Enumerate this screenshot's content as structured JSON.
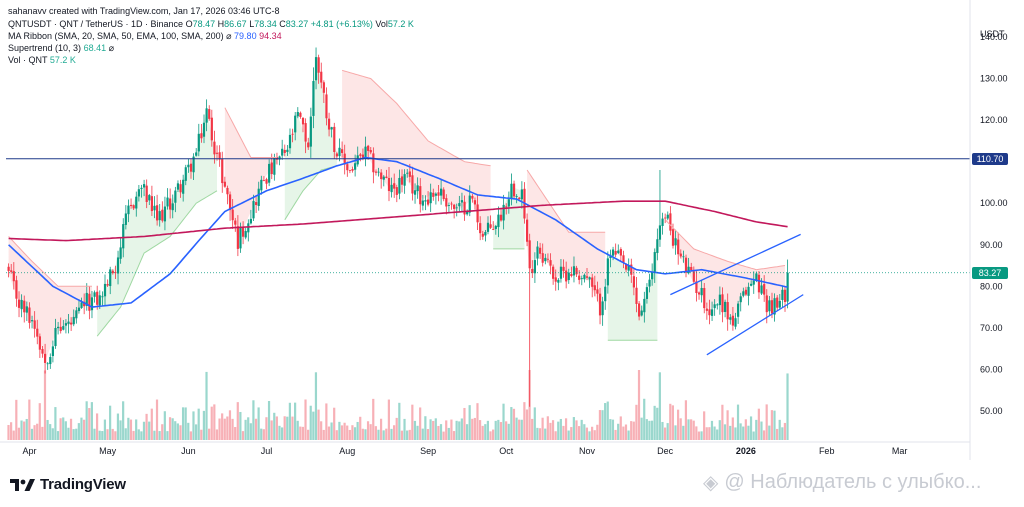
{
  "credit": "sahanavv created with TradingView.com, Jan 17, 2026 03:46 UTC-8",
  "legend": {
    "symbol": "QNTUSDT · QNT / TetherUS · 1D · Binance",
    "o_label": "O",
    "o_value": "78.47",
    "h_label": "H",
    "h_value": "86.67",
    "l_label": "L",
    "l_value": "78.34",
    "c_label": "C",
    "c_value": "83.27",
    "change": "+4.81 (+6.13%)",
    "vol_label": "Vol",
    "vol_value": "57.2 K",
    "ma_ribbon": "MA Ribbon (SMA, 20, SMA, 50, EMA, 100, SMA, 200)",
    "ma_symbol": "⌀",
    "ma_value_1": "79.80",
    "ma_value_2": "94.34",
    "supertrend": "Supertrend (10, 3)",
    "supertrend_symbol": "⌀",
    "supertrend_value": "68.41",
    "supertrend_suffix": "⌀",
    "vol_indicator": "Vol · QNT",
    "vol_indicator_value": "57.2 K"
  },
  "currency": "USDT",
  "price_labels": {
    "horizontal_line": "110.70",
    "last_price": "83.27"
  },
  "logo_text": "TradingView",
  "watermark": "@ Наблюдатель с улыбко...",
  "colors": {
    "up": "#089981",
    "down": "#f23645",
    "sma50": "#2962ff",
    "sma200": "#c2185b",
    "hline": "#1e3a8a",
    "channel": "#2962ff",
    "supertrend_down": "#f7a8a8",
    "supertrend_up": "#9fd8a2"
  },
  "chart_data": {
    "type": "candlestick",
    "title": "",
    "xlabel": "",
    "ylabel": "",
    "ylim": [
      43,
      147
    ],
    "y_ticks": [
      50,
      60,
      70,
      80,
      90,
      100,
      110,
      120,
      130,
      140
    ],
    "x_ticks": [
      "Apr",
      "May",
      "Jun",
      "Jul",
      "Aug",
      "Sep",
      "Oct",
      "Nov",
      "Dec",
      "2026",
      "Feb",
      "Mar"
    ],
    "x_tick_dates": [
      "2025-04-01",
      "2025-05-01",
      "2025-06-01",
      "2025-07-01",
      "2025-08-01",
      "2025-09-01",
      "2025-10-01",
      "2025-11-01",
      "2025-12-01",
      "2026-01-01",
      "2026-02-01",
      "2026-03-01"
    ],
    "date_range": [
      "2025-03-23",
      "2026-03-28"
    ],
    "first_candle_date": "2025-03-24",
    "last_candle_date": "2026-01-17",
    "grid": false,
    "horizontal_line": 110.7,
    "last_close": 83.27,
    "close_anchors": [
      [
        "2025-03-24",
        83
      ],
      [
        "2025-03-28",
        76
      ],
      [
        "2025-04-03",
        71
      ],
      [
        "2025-04-07",
        62
      ],
      [
        "2025-04-12",
        70
      ],
      [
        "2025-04-18",
        71
      ],
      [
        "2025-04-22",
        76
      ],
      [
        "2025-04-28",
        77
      ],
      [
        "2025-05-04",
        85
      ],
      [
        "2025-05-09",
        98
      ],
      [
        "2025-05-14",
        104
      ],
      [
        "2025-05-20",
        96
      ],
      [
        "2025-05-26",
        101
      ],
      [
        "2025-06-01",
        108
      ],
      [
        "2025-06-04",
        112
      ],
      [
        "2025-06-08",
        122
      ],
      [
        "2025-06-11",
        114
      ],
      [
        "2025-06-15",
        104
      ],
      [
        "2025-06-20",
        91
      ],
      [
        "2025-06-25",
        98
      ],
      [
        "2025-06-30",
        106
      ],
      [
        "2025-07-04",
        109
      ],
      [
        "2025-07-09",
        113
      ],
      [
        "2025-07-13",
        121
      ],
      [
        "2025-07-17",
        114
      ],
      [
        "2025-07-20",
        136
      ],
      [
        "2025-07-24",
        122
      ],
      [
        "2025-07-28",
        112
      ],
      [
        "2025-08-02",
        108
      ],
      [
        "2025-08-08",
        112
      ],
      [
        "2025-08-13",
        107
      ],
      [
        "2025-08-18",
        103
      ],
      [
        "2025-08-23",
        106
      ],
      [
        "2025-08-30",
        101
      ],
      [
        "2025-09-05",
        103
      ],
      [
        "2025-09-12",
        98
      ],
      [
        "2025-09-18",
        101
      ],
      [
        "2025-09-22",
        92
      ],
      [
        "2025-09-28",
        96
      ],
      [
        "2025-10-03",
        104
      ],
      [
        "2025-10-07",
        103
      ],
      [
        "2025-10-10",
        83
      ],
      [
        "2025-10-13",
        90
      ],
      [
        "2025-10-20",
        82
      ],
      [
        "2025-10-26",
        84
      ],
      [
        "2025-11-01",
        82
      ],
      [
        "2025-11-06",
        75
      ],
      [
        "2025-11-10",
        88
      ],
      [
        "2025-11-14",
        86
      ],
      [
        "2025-11-18",
        82
      ],
      [
        "2025-11-21",
        73
      ],
      [
        "2025-11-25",
        80
      ],
      [
        "2025-11-29",
        96
      ],
      [
        "2025-12-02",
        96
      ],
      [
        "2025-12-06",
        88
      ],
      [
        "2025-12-11",
        82
      ],
      [
        "2025-12-15",
        78
      ],
      [
        "2025-12-18",
        74
      ],
      [
        "2025-12-22",
        77
      ],
      [
        "2025-12-27",
        71
      ],
      [
        "2026-01-01",
        79
      ],
      [
        "2026-01-05",
        82
      ],
      [
        "2026-01-09",
        76
      ],
      [
        "2026-01-13",
        75
      ],
      [
        "2026-01-16",
        78.46
      ],
      [
        "2026-01-17",
        83.27
      ]
    ],
    "series": [
      {
        "name": "MA Ribbon SMA 50",
        "values": [
          [
            "2025-03-24",
            90
          ],
          [
            "2025-04-10",
            80
          ],
          [
            "2025-04-25",
            75
          ],
          [
            "2025-05-10",
            76
          ],
          [
            "2025-05-25",
            83
          ],
          [
            "2025-06-05",
            91
          ],
          [
            "2025-06-15",
            98
          ],
          [
            "2025-07-01",
            103
          ],
          [
            "2025-07-15",
            106
          ],
          [
            "2025-07-28",
            109
          ],
          [
            "2025-08-08",
            111
          ],
          [
            "2025-08-20",
            110
          ],
          [
            "2025-09-05",
            106
          ],
          [
            "2025-09-20",
            102
          ],
          [
            "2025-10-05",
            101
          ],
          [
            "2025-10-20",
            96
          ],
          [
            "2025-11-05",
            89
          ],
          [
            "2025-11-20",
            84
          ],
          [
            "2025-12-01",
            83
          ],
          [
            "2025-12-15",
            84
          ],
          [
            "2026-01-01",
            82
          ],
          [
            "2026-01-17",
            79.8
          ]
        ]
      },
      {
        "name": "MA Ribbon SMA 200",
        "values": [
          [
            "2025-03-24",
            91.5
          ],
          [
            "2025-04-15",
            91
          ],
          [
            "2025-05-15",
            92
          ],
          [
            "2025-06-15",
            94
          ],
          [
            "2025-07-15",
            95
          ],
          [
            "2025-08-15",
            96.5
          ],
          [
            "2025-09-15",
            98
          ],
          [
            "2025-10-15",
            99.5
          ],
          [
            "2025-11-15",
            100.5
          ],
          [
            "2025-12-01",
            100.5
          ],
          [
            "2025-12-20",
            98
          ],
          [
            "2026-01-05",
            95.5
          ],
          [
            "2026-01-17",
            94.34
          ]
        ]
      },
      {
        "name": "Supertrend (10, 3)",
        "segments": [
          {
            "trend": "down",
            "values": [
              [
                "2025-03-24",
                92
              ],
              [
                "2025-04-02",
                86
              ],
              [
                "2025-04-12",
                80
              ],
              [
                "2025-04-25",
                80
              ]
            ]
          },
          {
            "trend": "up",
            "values": [
              [
                "2025-04-27",
                68
              ],
              [
                "2025-05-06",
                75
              ],
              [
                "2025-05-15",
                88
              ],
              [
                "2025-05-25",
                92
              ],
              [
                "2025-06-04",
                100
              ],
              [
                "2025-06-12",
                103
              ]
            ]
          },
          {
            "trend": "down",
            "values": [
              [
                "2025-06-15",
                123
              ],
              [
                "2025-06-25",
                111
              ],
              [
                "2025-07-05",
                111
              ]
            ]
          },
          {
            "trend": "up",
            "values": [
              [
                "2025-07-08",
                96
              ],
              [
                "2025-07-15",
                103
              ],
              [
                "2025-07-22",
                108
              ],
              [
                "2025-07-28",
                109
              ]
            ]
          },
          {
            "trend": "down",
            "values": [
              [
                "2025-07-30",
                132
              ],
              [
                "2025-08-10",
                130
              ],
              [
                "2025-08-20",
                124
              ],
              [
                "2025-09-01",
                115
              ],
              [
                "2025-09-15",
                110
              ],
              [
                "2025-09-25",
                109
              ]
            ]
          },
          {
            "trend": "up",
            "values": [
              [
                "2025-09-26",
                89
              ],
              [
                "2025-10-08",
                89
              ]
            ]
          },
          {
            "trend": "down",
            "values": [
              [
                "2025-10-09",
                108
              ],
              [
                "2025-10-25",
                93
              ],
              [
                "2025-11-08",
                93
              ]
            ]
          },
          {
            "trend": "up",
            "values": [
              [
                "2025-11-09",
                67
              ],
              [
                "2025-11-28",
                67
              ]
            ]
          },
          {
            "trend": "down",
            "values": [
              [
                "2025-12-01",
                96
              ],
              [
                "2025-12-12",
                89
              ],
              [
                "2025-12-25",
                86
              ],
              [
                "2026-01-05",
                84
              ],
              [
                "2026-01-16",
                85
              ]
            ]
          }
        ]
      }
    ],
    "volume": {
      "name": "Vol · QNT",
      "last": "57.2 K"
    },
    "annotations": {
      "channel_upper": [
        [
          "2025-12-03",
          78
        ],
        [
          "2026-01-22",
          92.5
        ]
      ],
      "channel_lower": [
        [
          "2025-12-17",
          63.5
        ],
        [
          "2026-01-23",
          78
        ]
      ]
    }
  }
}
